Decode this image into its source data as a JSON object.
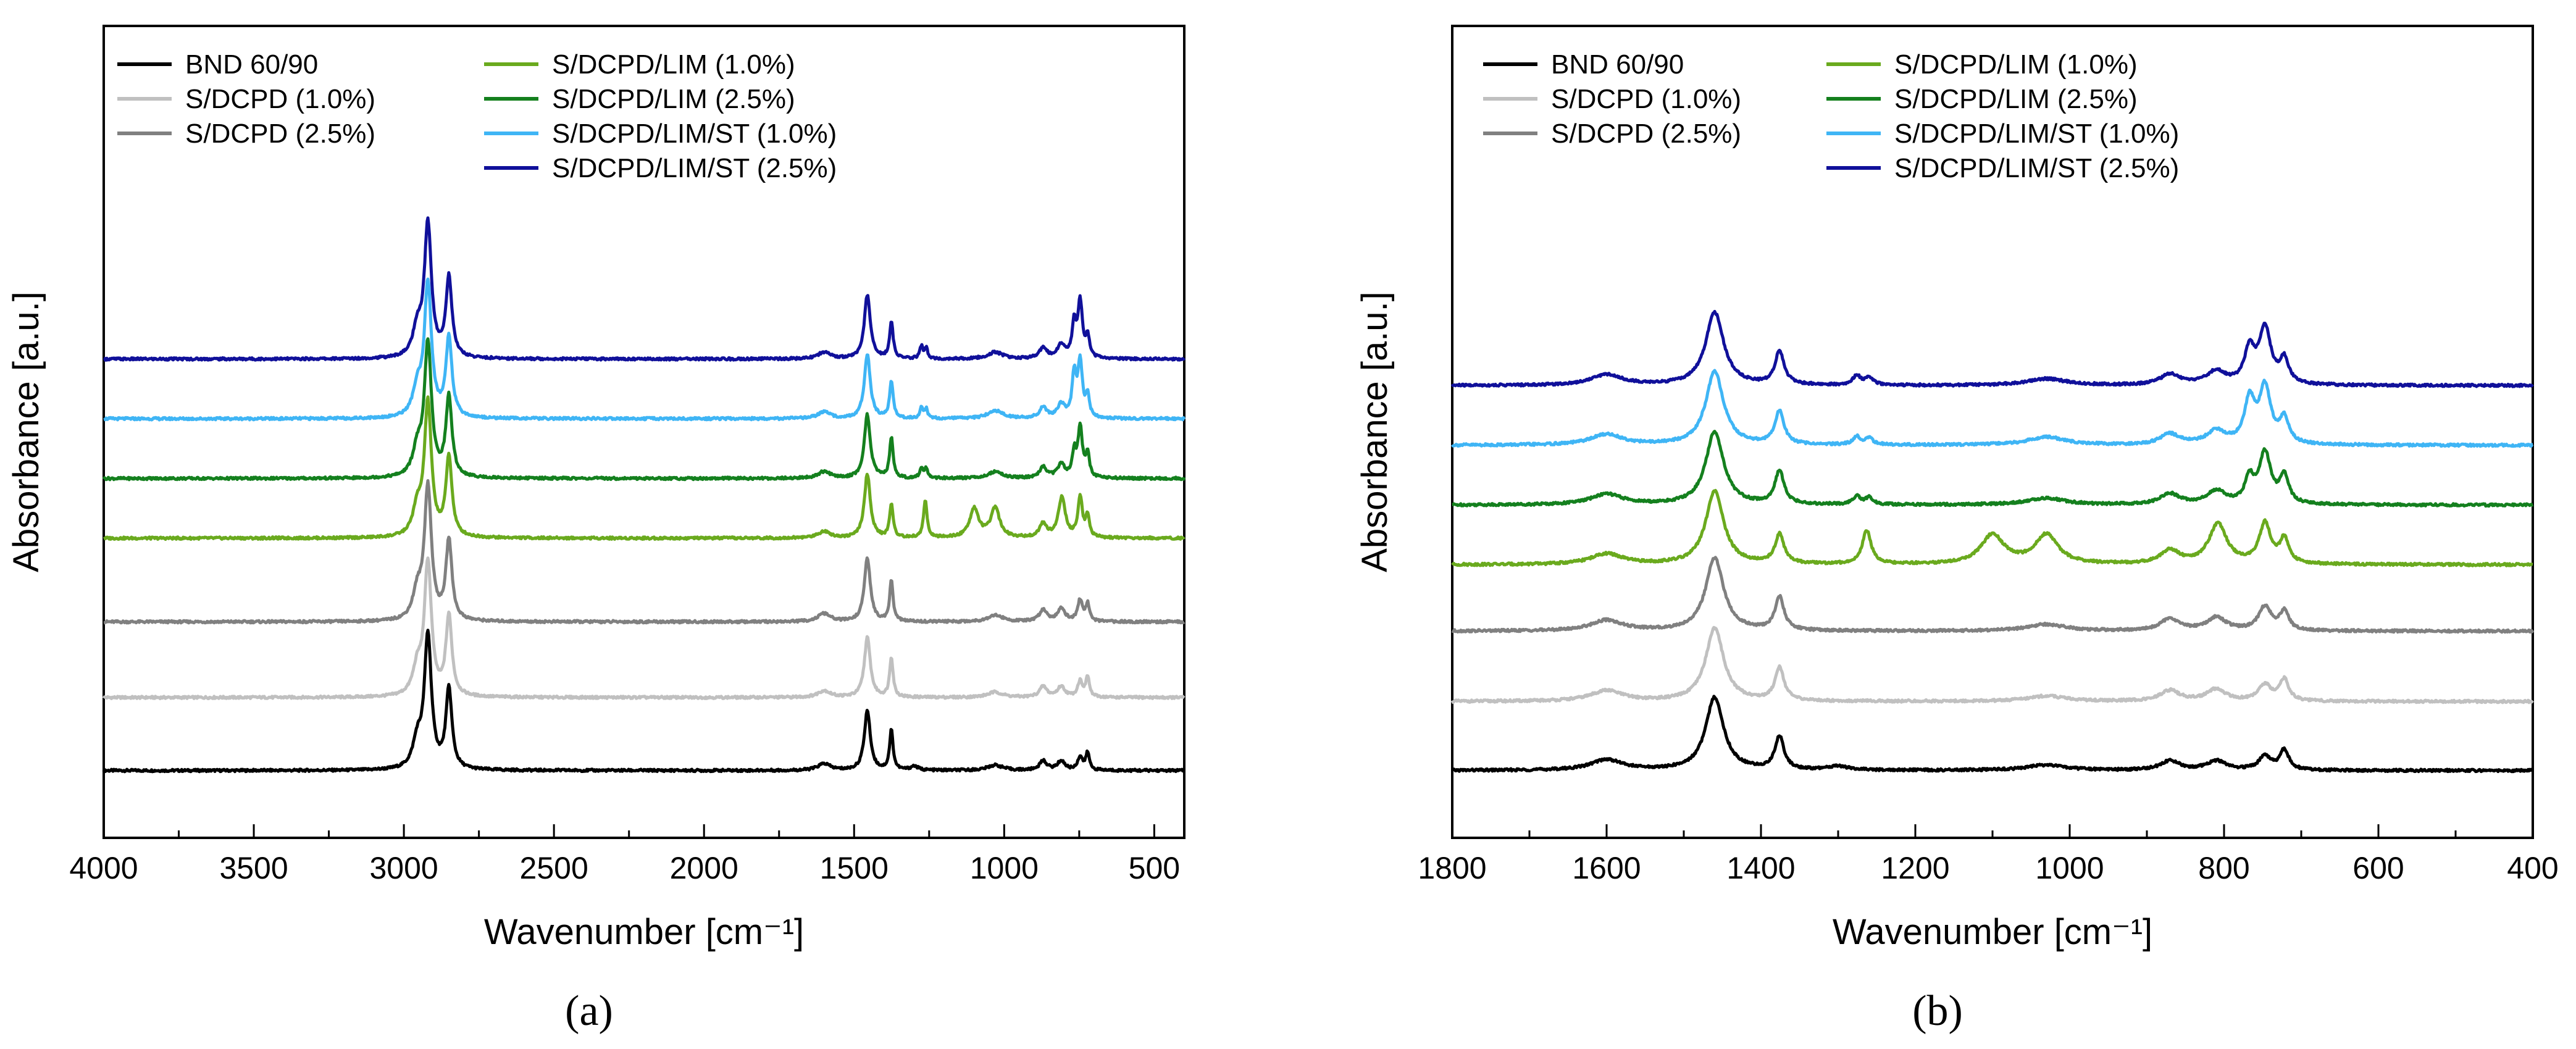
{
  "figure": {
    "panel_a_tag": "(a)",
    "panel_b_tag": "(b)"
  },
  "chart_data": [
    {
      "type": "line",
      "panel": "a",
      "title": "",
      "xlabel": "Wavenumber [cm⁻¹]",
      "ylabel": "Absorbance [a.u.]",
      "xlim": [
        4000,
        400
      ],
      "x_ticks": [
        4000,
        3500,
        3000,
        2500,
        2000,
        1500,
        1000,
        500
      ],
      "y_ticks_shown": false,
      "grid": false,
      "legend_position": "top-left",
      "series": [
        {
          "name": "BND 60/90",
          "color": "#000000",
          "offset": 0.0,
          "peaks": [
            [
              2955,
              0.2,
              18
            ],
            [
              2920,
              1.0,
              14
            ],
            [
              2850,
              0.6,
              12
            ],
            [
              1600,
              0.05,
              25
            ],
            [
              1456,
              0.45,
              12
            ],
            [
              1376,
              0.3,
              7
            ],
            [
              1300,
              0.03,
              15
            ],
            [
              1030,
              0.04,
              30
            ],
            [
              870,
              0.07,
              15
            ],
            [
              810,
              0.07,
              15
            ],
            [
              747,
              0.1,
              10
            ],
            [
              722,
              0.13,
              7
            ]
          ]
        },
        {
          "name": "S/DCPD (1.0%)",
          "color": "#c0c0c0",
          "offset": 0.55,
          "peaks": [
            [
              2955,
              0.2,
              18
            ],
            [
              2920,
              1.0,
              14
            ],
            [
              2850,
              0.6,
              12
            ],
            [
              1600,
              0.05,
              25
            ],
            [
              1456,
              0.45,
              12
            ],
            [
              1376,
              0.3,
              7
            ],
            [
              1030,
              0.04,
              30
            ],
            [
              870,
              0.08,
              15
            ],
            [
              810,
              0.08,
              15
            ],
            [
              747,
              0.12,
              10
            ],
            [
              722,
              0.15,
              7
            ]
          ]
        },
        {
          "name": "S/DCPD (2.5%)",
          "color": "#808080",
          "offset": 1.12,
          "peaks": [
            [
              2955,
              0.2,
              18
            ],
            [
              2920,
              1.0,
              14
            ],
            [
              2850,
              0.6,
              12
            ],
            [
              1600,
              0.06,
              25
            ],
            [
              1456,
              0.48,
              12
            ],
            [
              1376,
              0.3,
              7
            ],
            [
              1030,
              0.05,
              30
            ],
            [
              870,
              0.09,
              15
            ],
            [
              810,
              0.1,
              15
            ],
            [
              747,
              0.16,
              10
            ],
            [
              722,
              0.13,
              7
            ]
          ]
        },
        {
          "name": "S/DCPD/LIM (1.0%)",
          "color": "#6aaa1e",
          "offset": 1.75,
          "peaks": [
            [
              2955,
              0.2,
              18
            ],
            [
              2920,
              1.0,
              14
            ],
            [
              2850,
              0.6,
              12
            ],
            [
              1600,
              0.05,
              25
            ],
            [
              1456,
              0.48,
              12
            ],
            [
              1376,
              0.25,
              7
            ],
            [
              1263,
              0.28,
              7
            ],
            [
              1100,
              0.22,
              18
            ],
            [
              1030,
              0.22,
              18
            ],
            [
              870,
              0.1,
              15
            ],
            [
              808,
              0.3,
              14
            ],
            [
              747,
              0.3,
              9
            ],
            [
              722,
              0.16,
              7
            ]
          ]
        },
        {
          "name": "S/DCPD/LIM (2.5%)",
          "color": "#14801e",
          "offset": 2.2,
          "peaks": [
            [
              2955,
              0.2,
              18
            ],
            [
              2920,
              1.0,
              14
            ],
            [
              2850,
              0.6,
              12
            ],
            [
              1600,
              0.05,
              25
            ],
            [
              1456,
              0.48,
              12
            ],
            [
              1376,
              0.3,
              7
            ],
            [
              1276,
              0.08,
              6
            ],
            [
              1260,
              0.07,
              6
            ],
            [
              1030,
              0.05,
              30
            ],
            [
              870,
              0.08,
              15
            ],
            [
              810,
              0.1,
              15
            ],
            [
              767,
              0.18,
              7
            ],
            [
              747,
              0.38,
              9
            ],
            [
              722,
              0.18,
              7
            ]
          ]
        },
        {
          "name": "S/DCPD/LIM/ST (1.0%)",
          "color": "#3fb5f5",
          "offset": 2.65,
          "peaks": [
            [
              2955,
              0.2,
              18
            ],
            [
              2920,
              1.0,
              14
            ],
            [
              2850,
              0.6,
              12
            ],
            [
              1600,
              0.05,
              25
            ],
            [
              1456,
              0.48,
              12
            ],
            [
              1376,
              0.28,
              7
            ],
            [
              1276,
              0.08,
              6
            ],
            [
              1260,
              0.07,
              6
            ],
            [
              1030,
              0.06,
              30
            ],
            [
              870,
              0.08,
              15
            ],
            [
              810,
              0.1,
              15
            ],
            [
              767,
              0.32,
              8
            ],
            [
              747,
              0.42,
              9
            ],
            [
              722,
              0.16,
              7
            ]
          ]
        },
        {
          "name": "S/DCPD/LIM/ST (2.5%)",
          "color": "#10109a",
          "offset": 3.1,
          "peaks": [
            [
              2955,
              0.2,
              18
            ],
            [
              2920,
              1.0,
              14
            ],
            [
              2850,
              0.6,
              12
            ],
            [
              1600,
              0.05,
              25
            ],
            [
              1456,
              0.48,
              12
            ],
            [
              1376,
              0.28,
              7
            ],
            [
              1276,
              0.09,
              6
            ],
            [
              1260,
              0.08,
              6
            ],
            [
              1030,
              0.05,
              30
            ],
            [
              870,
              0.08,
              15
            ],
            [
              810,
              0.1,
              15
            ],
            [
              767,
              0.25,
              8
            ],
            [
              747,
              0.42,
              9
            ],
            [
              722,
              0.16,
              7
            ]
          ]
        }
      ]
    },
    {
      "type": "line",
      "panel": "b",
      "title": "",
      "xlabel": "Wavenumber [cm⁻¹]",
      "ylabel": "Absorbance [a.u.]",
      "xlim": [
        1800,
        400
      ],
      "x_ticks": [
        1800,
        1600,
        1400,
        1200,
        1000,
        800,
        600,
        400
      ],
      "y_ticks_shown": false,
      "grid": false,
      "legend_position": "top-left",
      "series": [
        {
          "name": "BND 60/90",
          "color": "#000000",
          "offset": 0.0,
          "peaks": [
            [
              1600,
              0.08,
              25
            ],
            [
              1460,
              0.55,
              14
            ],
            [
              1376,
              0.25,
              7
            ],
            [
              1300,
              0.03,
              15
            ],
            [
              1030,
              0.04,
              30
            ],
            [
              870,
              0.07,
              15
            ],
            [
              810,
              0.07,
              15
            ],
            [
              747,
              0.1,
              10
            ],
            [
              722,
              0.15,
              7
            ]
          ]
        },
        {
          "name": "S/DCPD (1.0%)",
          "color": "#c0c0c0",
          "offset": 0.52,
          "peaks": [
            [
              1600,
              0.08,
              25
            ],
            [
              1460,
              0.55,
              14
            ],
            [
              1376,
              0.25,
              7
            ],
            [
              1030,
              0.04,
              30
            ],
            [
              870,
              0.08,
              15
            ],
            [
              810,
              0.09,
              15
            ],
            [
              747,
              0.12,
              10
            ],
            [
              722,
              0.16,
              7
            ]
          ]
        },
        {
          "name": "S/DCPD (2.5%)",
          "color": "#808080",
          "offset": 1.05,
          "peaks": [
            [
              1600,
              0.08,
              25
            ],
            [
              1460,
              0.55,
              14
            ],
            [
              1376,
              0.25,
              7
            ],
            [
              1030,
              0.05,
              30
            ],
            [
              870,
              0.09,
              15
            ],
            [
              810,
              0.1,
              15
            ],
            [
              747,
              0.18,
              10
            ],
            [
              722,
              0.14,
              7
            ]
          ]
        },
        {
          "name": "S/DCPD/LIM (1.0%)",
          "color": "#6aaa1e",
          "offset": 1.55,
          "peaks": [
            [
              1600,
              0.08,
              25
            ],
            [
              1460,
              0.55,
              14
            ],
            [
              1376,
              0.22,
              7
            ],
            [
              1263,
              0.25,
              7
            ],
            [
              1100,
              0.22,
              18
            ],
            [
              1030,
              0.22,
              18
            ],
            [
              870,
              0.1,
              15
            ],
            [
              808,
              0.3,
              14
            ],
            [
              747,
              0.3,
              9
            ],
            [
              722,
              0.18,
              7
            ]
          ]
        },
        {
          "name": "S/DCPD/LIM (2.5%)",
          "color": "#14801e",
          "offset": 2.0,
          "peaks": [
            [
              1600,
              0.08,
              25
            ],
            [
              1460,
              0.55,
              14
            ],
            [
              1376,
              0.25,
              7
            ],
            [
              1276,
              0.06,
              6
            ],
            [
              1260,
              0.05,
              6
            ],
            [
              1030,
              0.05,
              30
            ],
            [
              870,
              0.08,
              15
            ],
            [
              810,
              0.1,
              15
            ],
            [
              767,
              0.18,
              7
            ],
            [
              747,
              0.38,
              9
            ],
            [
              722,
              0.2,
              7
            ]
          ]
        },
        {
          "name": "S/DCPD/LIM/ST (1.0%)",
          "color": "#3fb5f5",
          "offset": 2.45,
          "peaks": [
            [
              1600,
              0.08,
              25
            ],
            [
              1460,
              0.55,
              14
            ],
            [
              1376,
              0.25,
              7
            ],
            [
              1276,
              0.06,
              6
            ],
            [
              1260,
              0.05,
              6
            ],
            [
              1030,
              0.06,
              30
            ],
            [
              870,
              0.08,
              15
            ],
            [
              810,
              0.1,
              15
            ],
            [
              767,
              0.32,
              8
            ],
            [
              747,
              0.42,
              9
            ],
            [
              722,
              0.18,
              7
            ]
          ]
        },
        {
          "name": "S/DCPD/LIM/ST (2.5%)",
          "color": "#10109a",
          "offset": 2.9,
          "peaks": [
            [
              1600,
              0.08,
              25
            ],
            [
              1460,
              0.55,
              14
            ],
            [
              1376,
              0.25,
              7
            ],
            [
              1276,
              0.07,
              6
            ],
            [
              1260,
              0.06,
              6
            ],
            [
              1030,
              0.05,
              30
            ],
            [
              870,
              0.08,
              15
            ],
            [
              810,
              0.1,
              15
            ],
            [
              767,
              0.25,
              8
            ],
            [
              747,
              0.42,
              9
            ],
            [
              722,
              0.18,
              7
            ]
          ]
        }
      ]
    }
  ]
}
